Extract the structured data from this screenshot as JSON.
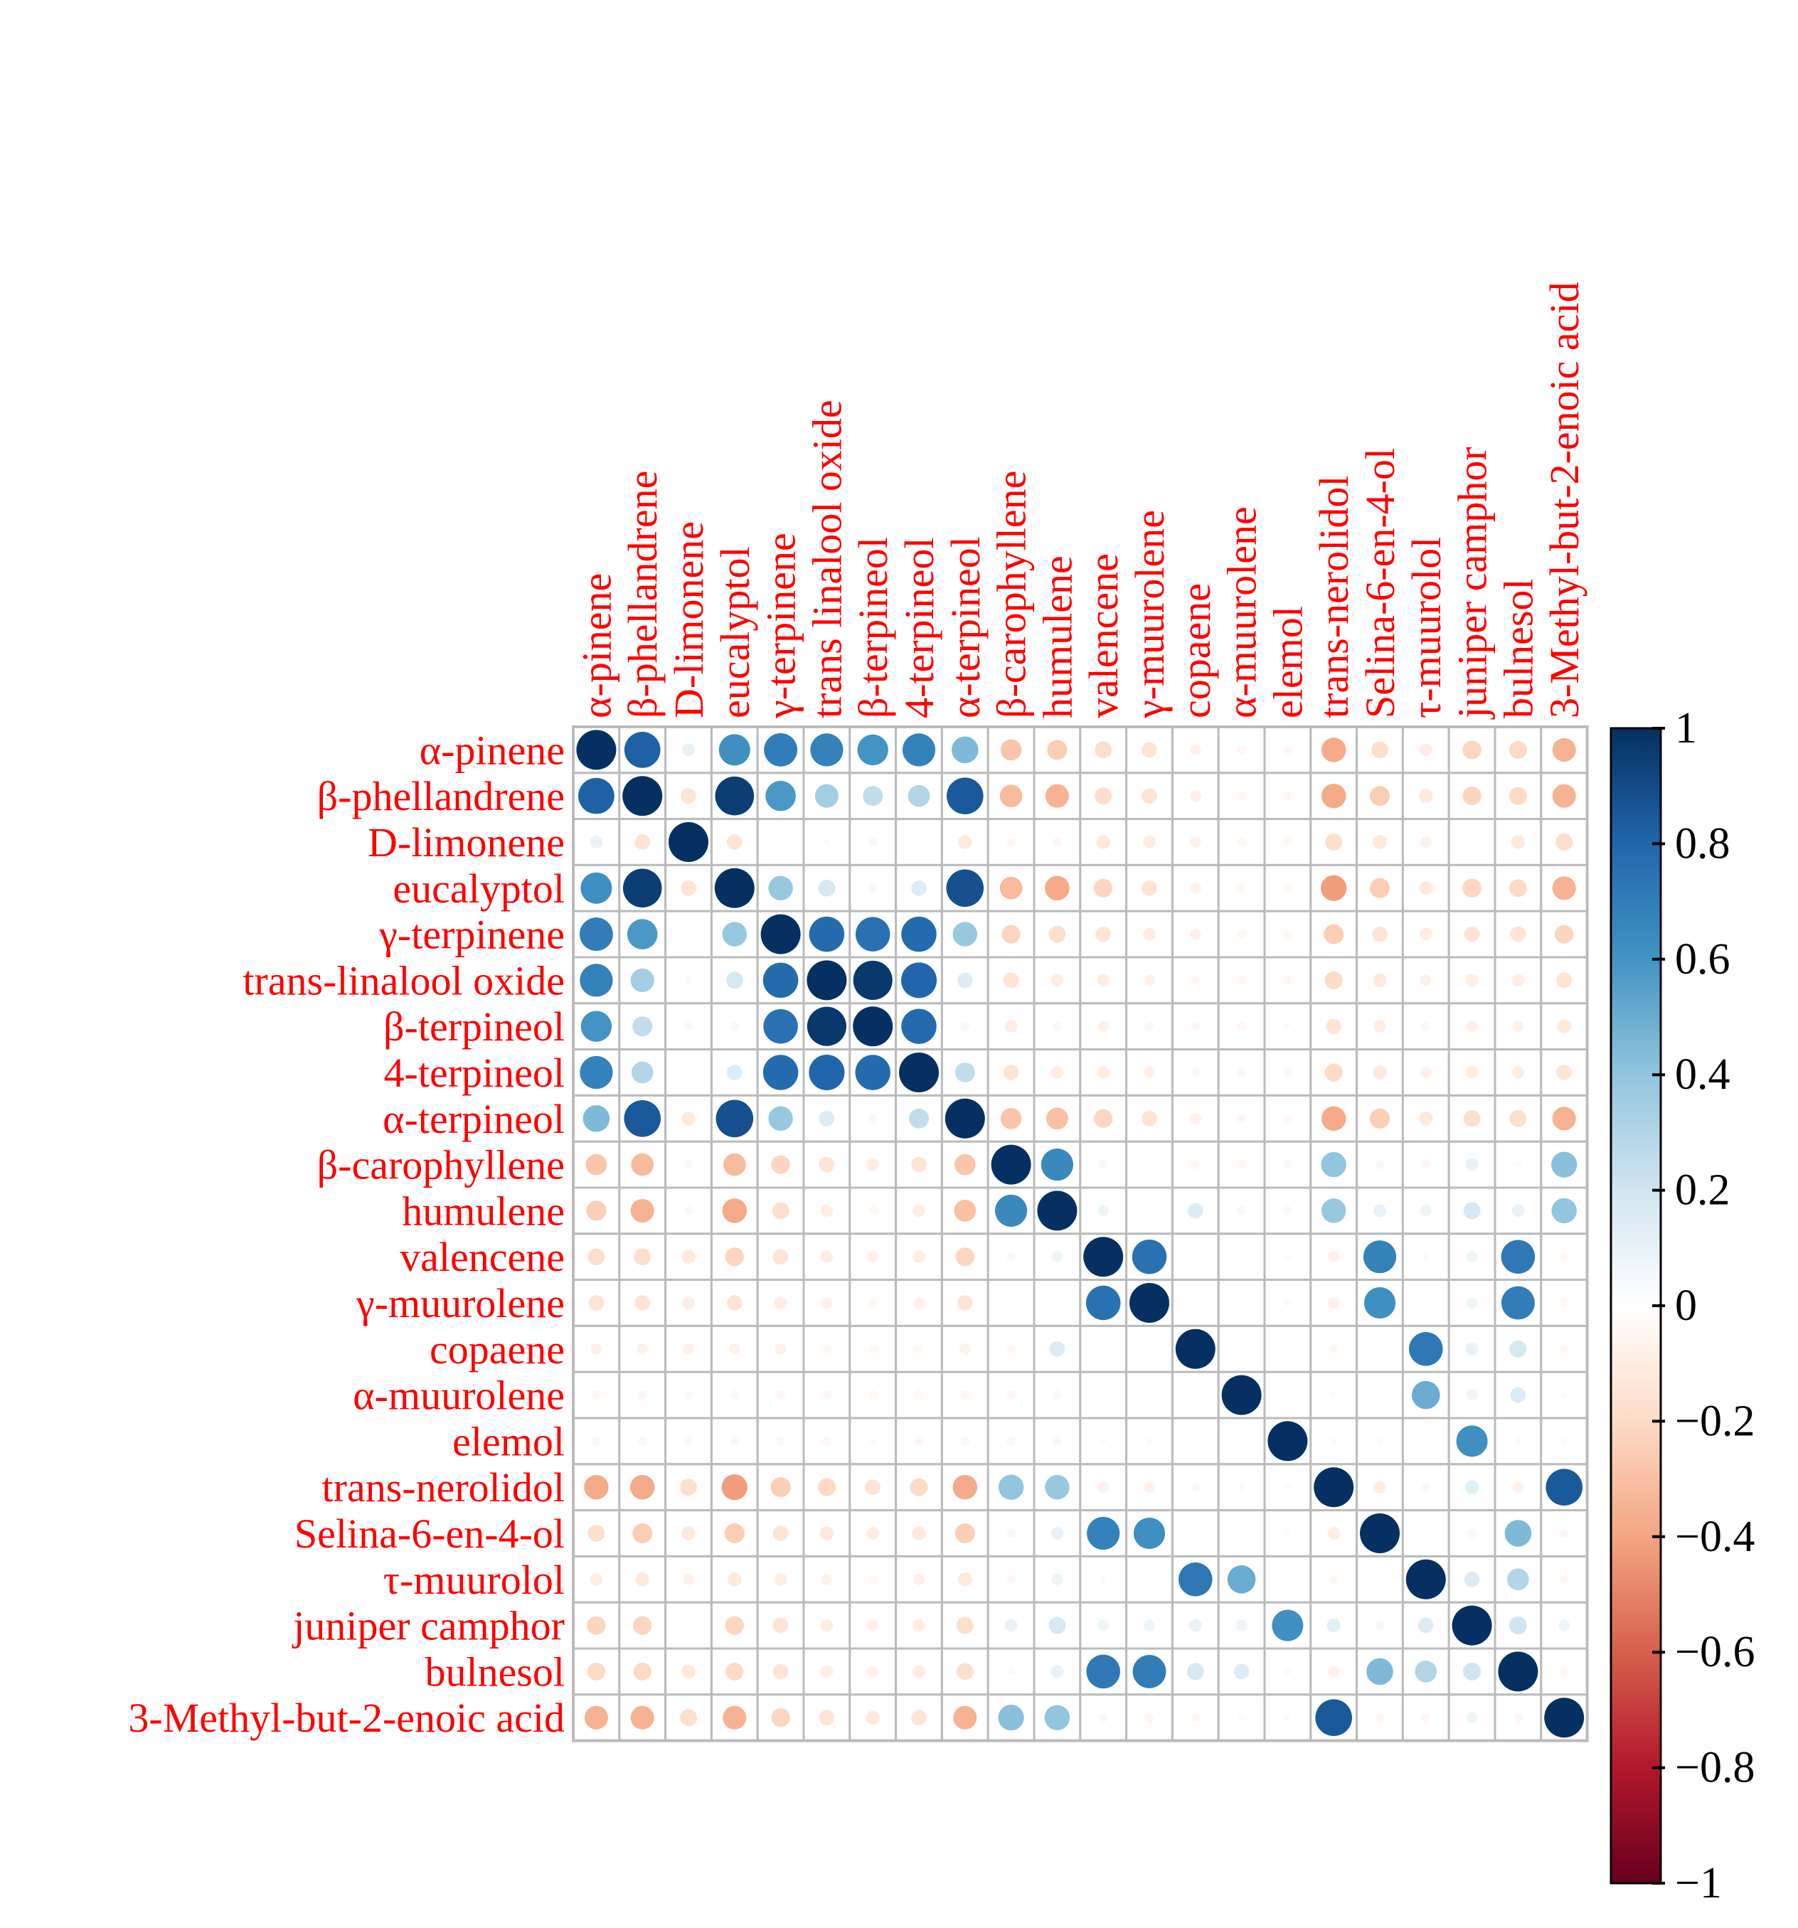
{
  "chart_data": {
    "type": "heatmap",
    "subtype": "correlation-circles",
    "title": "",
    "labels": [
      "α-pinene",
      "β-phellandrene",
      "D-limonene",
      "eucalyptol",
      "γ-terpinene",
      "trans-linalool oxide",
      "β-terpineol",
      "4-terpineol",
      "α-terpineol",
      "β-carophyllene",
      "humulene",
      "valencene",
      "γ-muurolene",
      "copaene",
      "α-muurolene",
      "elemol",
      "trans-nerolidol",
      "Selina-6-en-4-ol",
      "τ-muurolol",
      "juniper camphor",
      "bulnesol",
      "3-Methyl-but-2-enoic acid"
    ],
    "column_labels": [
      "α-pinene",
      "β-phellandrene",
      "D-limonene",
      "eucalyptol",
      "γ-terpinene",
      "trans linalool oxide",
      "β-terpineol",
      "4-terpineol",
      "α-terpineol",
      "β-carophyllene",
      "humulene",
      "valencene",
      "γ-muurolene",
      "copaene",
      "α-muurolene",
      "elemol",
      "trans-nerolidol",
      "Selina-6-en-4-ol",
      "τ-muurolol",
      "juniper camphor",
      "bulnesol",
      "3-Methyl-but-2-enoic acid"
    ],
    "matrix": [
      [
        1.0,
        0.82,
        0.1,
        0.62,
        0.7,
        0.68,
        0.6,
        0.68,
        0.45,
        -0.28,
        -0.25,
        -0.18,
        -0.15,
        -0.08,
        -0.05,
        -0.05,
        -0.38,
        -0.18,
        -0.1,
        -0.22,
        -0.2,
        -0.35
      ],
      [
        0.82,
        1.0,
        -0.15,
        0.95,
        0.58,
        0.35,
        0.25,
        0.3,
        0.85,
        -0.32,
        -0.35,
        -0.18,
        -0.15,
        -0.08,
        -0.05,
        -0.05,
        -0.38,
        -0.25,
        -0.12,
        -0.22,
        -0.2,
        -0.35
      ],
      [
        0.1,
        -0.15,
        1.0,
        -0.15,
        0.0,
        0.03,
        0.05,
        0.0,
        -0.12,
        -0.05,
        -0.05,
        -0.12,
        -0.1,
        -0.08,
        -0.05,
        -0.05,
        -0.18,
        -0.12,
        -0.08,
        0.0,
        -0.12,
        -0.18
      ],
      [
        0.62,
        0.95,
        -0.15,
        1.0,
        0.38,
        0.18,
        0.05,
        0.15,
        0.88,
        -0.32,
        -0.38,
        -0.22,
        -0.15,
        -0.08,
        -0.05,
        -0.05,
        -0.42,
        -0.25,
        -0.12,
        -0.22,
        -0.2,
        -0.35
      ],
      [
        0.7,
        0.58,
        0.0,
        0.38,
        1.0,
        0.78,
        0.75,
        0.78,
        0.38,
        -0.22,
        -0.18,
        -0.15,
        -0.1,
        -0.08,
        -0.05,
        -0.05,
        -0.25,
        -0.15,
        -0.1,
        -0.15,
        -0.15,
        -0.22
      ],
      [
        0.68,
        0.35,
        0.03,
        0.18,
        0.78,
        1.0,
        0.97,
        0.8,
        0.15,
        -0.15,
        -0.1,
        -0.1,
        -0.08,
        -0.05,
        -0.05,
        -0.05,
        -0.2,
        -0.12,
        -0.08,
        -0.1,
        -0.1,
        -0.15
      ],
      [
        0.6,
        0.25,
        0.05,
        0.05,
        0.75,
        0.97,
        1.0,
        0.78,
        0.05,
        -0.1,
        -0.05,
        -0.08,
        -0.05,
        -0.05,
        -0.05,
        -0.03,
        -0.15,
        -0.1,
        -0.05,
        -0.08,
        -0.08,
        -0.12
      ],
      [
        0.68,
        0.3,
        0.0,
        0.15,
        0.78,
        0.8,
        0.78,
        1.0,
        0.25,
        -0.15,
        -0.1,
        -0.1,
        -0.08,
        -0.05,
        -0.05,
        -0.05,
        -0.2,
        -0.12,
        -0.08,
        -0.1,
        -0.1,
        -0.15
      ],
      [
        0.45,
        0.85,
        -0.12,
        0.88,
        0.38,
        0.15,
        0.05,
        0.25,
        1.0,
        -0.28,
        -0.3,
        -0.22,
        -0.15,
        -0.08,
        -0.05,
        -0.05,
        -0.38,
        -0.25,
        -0.12,
        -0.18,
        -0.18,
        -0.35
      ],
      [
        -0.28,
        -0.32,
        -0.05,
        -0.32,
        -0.22,
        -0.15,
        -0.1,
        -0.15,
        -0.28,
        1.0,
        0.65,
        0.05,
        0.0,
        -0.05,
        -0.05,
        0.05,
        0.4,
        0.05,
        -0.05,
        0.1,
        0.03,
        0.42
      ],
      [
        -0.25,
        -0.35,
        -0.05,
        -0.38,
        -0.18,
        -0.1,
        -0.05,
        -0.1,
        -0.3,
        0.65,
        1.0,
        0.08,
        0.0,
        0.15,
        0.05,
        0.05,
        0.38,
        0.1,
        0.08,
        0.18,
        0.1,
        0.4
      ],
      [
        -0.18,
        -0.18,
        -0.12,
        -0.22,
        -0.15,
        -0.1,
        -0.08,
        -0.1,
        -0.22,
        0.05,
        0.08,
        1.0,
        0.75,
        0.0,
        0.0,
        -0.03,
        -0.08,
        0.68,
        0.03,
        0.08,
        0.72,
        -0.05
      ],
      [
        -0.15,
        -0.15,
        -0.1,
        -0.15,
        -0.1,
        -0.08,
        -0.05,
        -0.08,
        -0.15,
        0.0,
        0.0,
        0.75,
        1.0,
        0.0,
        0.0,
        0.03,
        -0.08,
        0.62,
        0.0,
        0.08,
        0.7,
        -0.05
      ],
      [
        -0.08,
        -0.08,
        -0.08,
        -0.08,
        -0.08,
        -0.05,
        -0.05,
        -0.05,
        -0.08,
        -0.05,
        0.15,
        0.0,
        0.0,
        1.0,
        0.0,
        0.0,
        -0.05,
        0.0,
        0.72,
        0.1,
        0.18,
        -0.05
      ],
      [
        -0.05,
        -0.05,
        -0.05,
        -0.05,
        -0.05,
        -0.05,
        -0.05,
        -0.05,
        -0.05,
        -0.05,
        0.05,
        0.0,
        0.0,
        0.0,
        1.0,
        0.0,
        -0.03,
        0.0,
        0.5,
        0.08,
        0.15,
        -0.03
      ],
      [
        -0.05,
        -0.05,
        -0.05,
        -0.05,
        -0.05,
        -0.05,
        -0.03,
        -0.05,
        -0.05,
        0.05,
        0.05,
        -0.03,
        0.03,
        0.0,
        0.0,
        1.0,
        -0.03,
        -0.03,
        0.0,
        0.62,
        0.03,
        -0.03
      ],
      [
        -0.38,
        -0.38,
        -0.18,
        -0.42,
        -0.25,
        -0.2,
        -0.15,
        -0.2,
        -0.38,
        0.4,
        0.38,
        -0.08,
        -0.08,
        -0.05,
        -0.03,
        -0.03,
        1.0,
        -0.1,
        -0.05,
        0.12,
        -0.08,
        0.85
      ],
      [
        -0.18,
        -0.25,
        -0.12,
        -0.25,
        -0.15,
        -0.12,
        -0.1,
        -0.12,
        -0.25,
        0.05,
        0.1,
        0.68,
        0.62,
        0.0,
        0.0,
        -0.03,
        -0.1,
        1.0,
        0.0,
        0.05,
        0.45,
        -0.05
      ],
      [
        -0.1,
        -0.12,
        -0.08,
        -0.12,
        -0.1,
        -0.08,
        -0.05,
        -0.08,
        -0.12,
        -0.05,
        0.08,
        0.03,
        0.0,
        0.72,
        0.5,
        0.0,
        -0.05,
        0.0,
        1.0,
        0.15,
        0.3,
        -0.05
      ],
      [
        -0.22,
        -0.22,
        0.0,
        -0.22,
        -0.15,
        -0.1,
        -0.08,
        -0.1,
        -0.18,
        0.1,
        0.18,
        0.08,
        0.08,
        0.1,
        0.08,
        0.62,
        0.12,
        0.05,
        0.15,
        1.0,
        0.2,
        0.08
      ],
      [
        -0.2,
        -0.2,
        -0.12,
        -0.2,
        -0.15,
        -0.1,
        -0.08,
        -0.1,
        -0.18,
        0.03,
        0.1,
        0.72,
        0.7,
        0.18,
        0.15,
        0.03,
        -0.08,
        0.45,
        0.3,
        0.2,
        1.0,
        -0.05
      ],
      [
        -0.35,
        -0.35,
        -0.18,
        -0.35,
        -0.22,
        -0.15,
        -0.12,
        -0.15,
        -0.35,
        0.42,
        0.4,
        -0.05,
        -0.05,
        -0.05,
        -0.03,
        -0.03,
        0.85,
        -0.05,
        -0.05,
        0.08,
        -0.05,
        1.0
      ]
    ],
    "colorbar": {
      "min": -1,
      "max": 1,
      "ticks": [
        1,
        0.8,
        0.6,
        0.4,
        0.2,
        0,
        -0.2,
        -0.4,
        -0.6,
        -0.8,
        -1
      ],
      "tick_labels": [
        "1",
        "0.8",
        "0.6",
        "0.4",
        "0.2",
        "0",
        "−0.2",
        "−0.4",
        "−0.6",
        "−0.8",
        "−1"
      ],
      "placement": "right"
    },
    "colors": {
      "label_text": "#ff0000",
      "grid": "#bbbbbb",
      "positive_end": "#053061",
      "negative_end": "#67001f",
      "zero": "#ffffff"
    }
  }
}
